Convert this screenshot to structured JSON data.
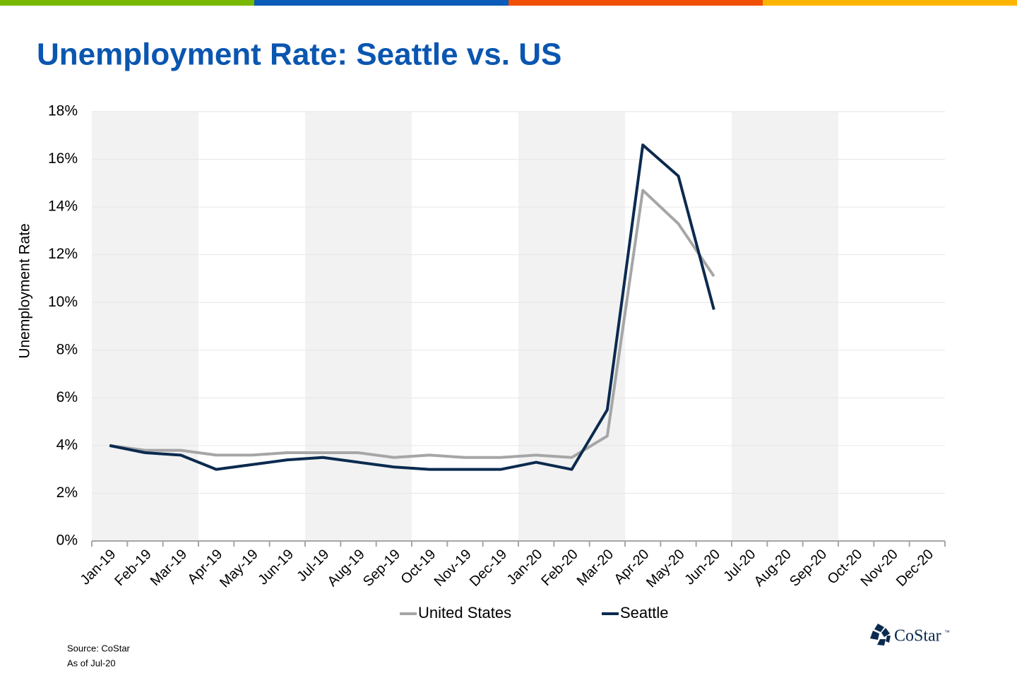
{
  "chart_data": {
    "type": "line",
    "title": "Unemployment Rate: Seattle vs. US",
    "y_label": "Unemployment Rate",
    "categories": [
      "Jan-19",
      "Feb-19",
      "Mar-19",
      "Apr-19",
      "May-19",
      "Jun-19",
      "Jul-19",
      "Aug-19",
      "Sep-19",
      "Oct-19",
      "Nov-19",
      "Dec-19",
      "Jan-20",
      "Feb-20",
      "Mar-20",
      "Apr-20",
      "May-20",
      "Jun-20",
      "Jul-20",
      "Aug-20",
      "Sep-20",
      "Oct-20",
      "Nov-20",
      "Dec-20"
    ],
    "series": [
      {
        "name": "United States",
        "color": "#a6a6a6",
        "values": [
          4.0,
          3.8,
          3.8,
          3.6,
          3.6,
          3.7,
          3.7,
          3.7,
          3.5,
          3.6,
          3.5,
          3.5,
          3.6,
          3.5,
          4.4,
          14.7,
          13.3,
          11.1,
          null,
          null,
          null,
          null,
          null,
          null
        ]
      },
      {
        "name": "Seattle",
        "color": "#0b2a4f",
        "values": [
          4.0,
          3.7,
          3.6,
          3.0,
          3.2,
          3.4,
          3.5,
          3.3,
          3.1,
          3.0,
          3.0,
          3.0,
          3.3,
          3.0,
          5.5,
          16.6,
          15.3,
          9.7,
          null,
          null,
          null,
          null,
          null,
          null
        ]
      }
    ],
    "ylim": [
      0,
      18
    ],
    "yticks": [
      {
        "value": 0,
        "label": "0%"
      },
      {
        "value": 2,
        "label": "2%"
      },
      {
        "value": 4,
        "label": "4%"
      },
      {
        "value": 6,
        "label": "6%"
      },
      {
        "value": 8,
        "label": "8%"
      },
      {
        "value": 10,
        "label": "10%"
      },
      {
        "value": 12,
        "label": "12%"
      },
      {
        "value": 14,
        "label": "14%"
      },
      {
        "value": 16,
        "label": "16%"
      },
      {
        "value": 18,
        "label": "18%"
      }
    ],
    "grid": true,
    "legend": "bottom",
    "source": "Source: CoStar",
    "as_of": "As of Jul-20",
    "logo": "CoStar",
    "logo_mark": "™"
  }
}
